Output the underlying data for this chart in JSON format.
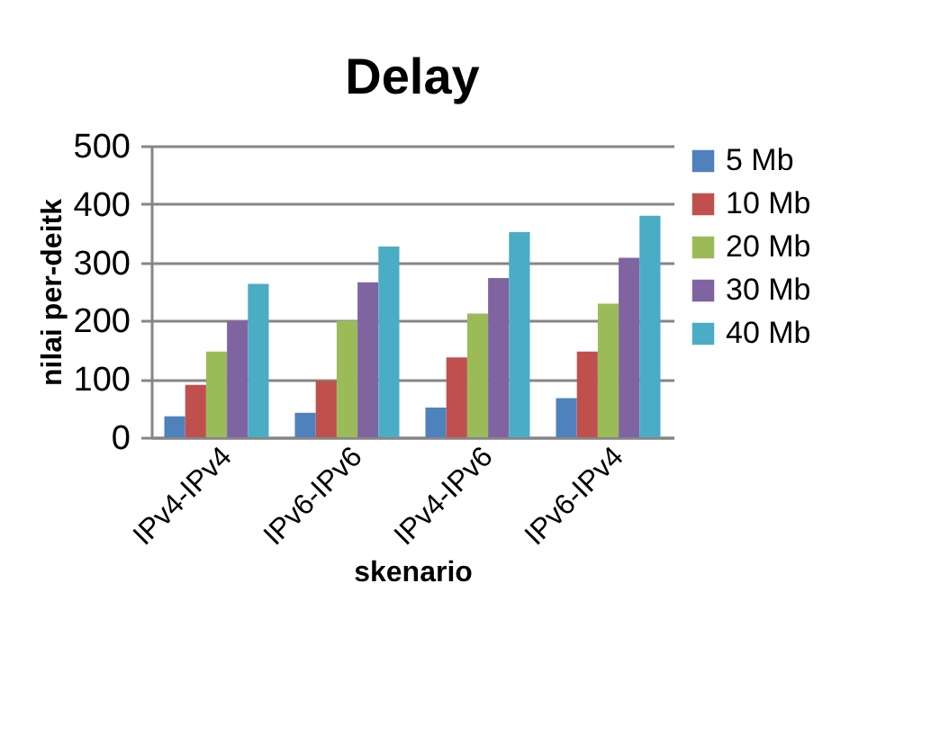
{
  "chart_data": {
    "type": "bar",
    "title": "Delay",
    "xlabel": "skenario",
    "ylabel": "nilai per-deitk",
    "categories": [
      "IPv4-IPv4",
      "IPv6-IPv6",
      "IPv4-IPv6",
      "IPv6-IPv4"
    ],
    "series": [
      {
        "name": "5 Mb",
        "color": "#4f81bd",
        "values": [
          36,
          42,
          51,
          67
        ]
      },
      {
        "name": "10 Mb",
        "color": "#c0504d",
        "values": [
          90,
          97,
          137,
          147
        ]
      },
      {
        "name": "20 Mb",
        "color": "#9bbb59",
        "values": [
          147,
          200,
          212,
          229
        ]
      },
      {
        "name": "30 Mb",
        "color": "#8064a2",
        "values": [
          200,
          266,
          273,
          308
        ]
      },
      {
        "name": "40 Mb",
        "color": "#4bacc6",
        "values": [
          263,
          327,
          352,
          380
        ]
      }
    ],
    "ylim": [
      0,
      500
    ],
    "yticks": [
      0,
      100,
      200,
      300,
      400,
      500
    ],
    "grid": "y",
    "legend": "right"
  }
}
